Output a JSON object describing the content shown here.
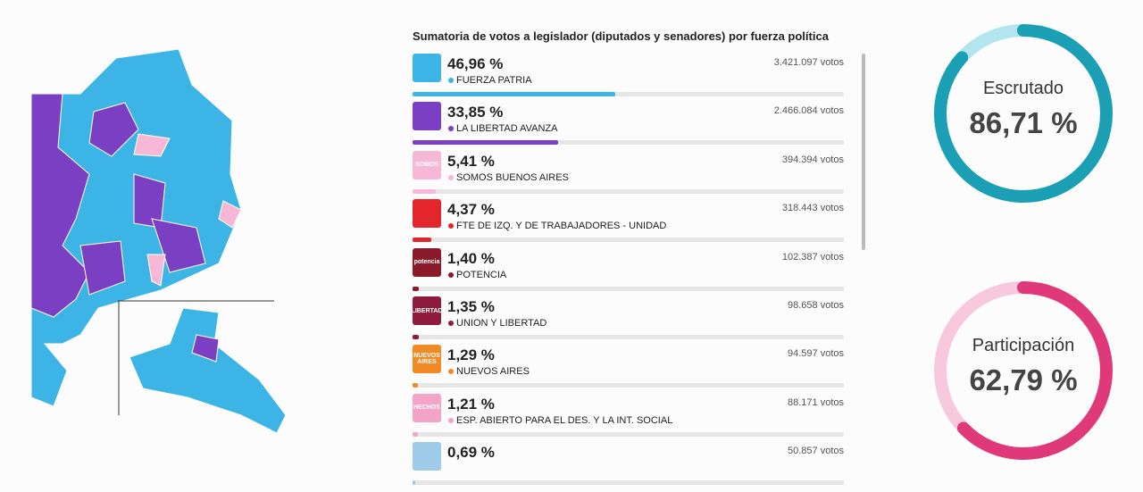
{
  "title": "Sumatoria de votos a legislador (diputados y senadores) por fuerza política",
  "parties": [
    {
      "label": "46,96 %",
      "percent": 46.96,
      "votes": "3.421.097 votos",
      "name": "FUERZA PATRIA",
      "color": "#3cb4e5"
    },
    {
      "label": "33,85 %",
      "percent": 33.85,
      "votes": "2.466.084 votos",
      "name": "LA LIBERTAD AVANZA",
      "color": "#7b3fc4"
    },
    {
      "label": "5,41 %",
      "percent": 5.41,
      "votes": "394.394 votos",
      "name": "SOMOS BUENOS AIRES",
      "color": "#f7b7d6",
      "logo_text": "SOMOS"
    },
    {
      "label": "4,37 %",
      "percent": 4.37,
      "votes": "318.443 votos",
      "name": "FTE DE IZQ. Y DE TRABAJADORES - UNIDAD",
      "color": "#e3262b"
    },
    {
      "label": "1,40 %",
      "percent": 1.4,
      "votes": "102.387 votos",
      "name": "POTENCIA",
      "color": "#8b1a2b",
      "logo_text": "potencia"
    },
    {
      "label": "1,35 %",
      "percent": 1.35,
      "votes": "98.658 votos",
      "name": "UNION Y LIBERTAD",
      "color": "#8e1b3d",
      "logo_text": "LIBERTAD"
    },
    {
      "label": "1,29 %",
      "percent": 1.29,
      "votes": "94.597 votos",
      "name": "NUEVOS AIRES",
      "color": "#f08a24",
      "logo_text": "NUEVOS AIRES"
    },
    {
      "label": "1,21 %",
      "percent": 1.21,
      "votes": "88.171 votos",
      "name": "ESP. ABIERTO PARA EL DES. Y LA INT. SOCIAL",
      "color": "#f4a4c6",
      "logo_text": "HECHOS"
    },
    {
      "label": "0,69 %",
      "percent": 0.69,
      "votes": "50.857 votos",
      "name": "",
      "color": "#9ecbe8"
    }
  ],
  "gauges": [
    {
      "title": "Escrutado",
      "label": "86,71 %",
      "value": 86.71,
      "color": "#1a9fb5",
      "track": "#b3e5ef"
    },
    {
      "title": "Participación",
      "label": "62,79 %",
      "value": 62.79,
      "color": "#e0397a",
      "track": "#f8c9dc"
    }
  ]
}
